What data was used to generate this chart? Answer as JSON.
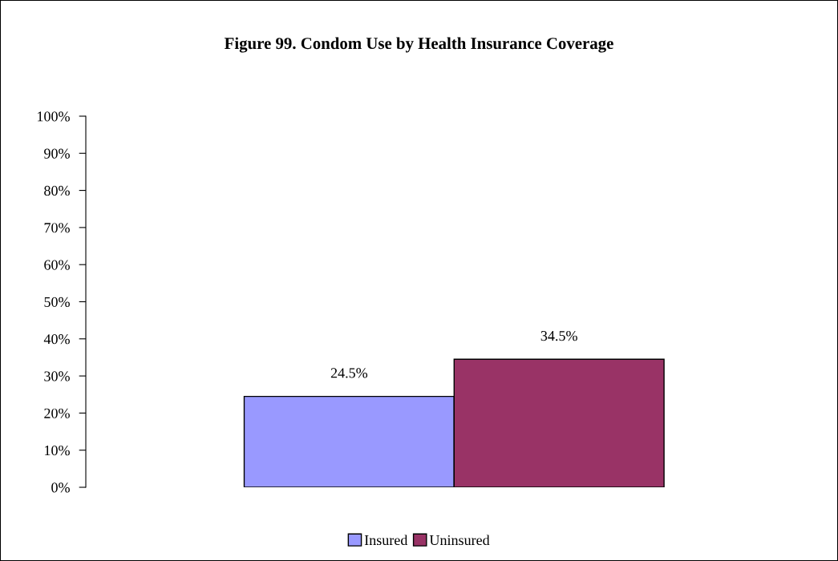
{
  "chart_data": {
    "type": "bar",
    "title": "Figure 99. Condom Use by Health Insurance Coverage",
    "categories": [
      null
    ],
    "series": [
      {
        "name": "Insured",
        "color": "#9999ff",
        "values": [
          24.5
        ],
        "value_labels": [
          "24.5%"
        ]
      },
      {
        "name": "Uninsured",
        "color": "#993366",
        "values": [
          34.5
        ],
        "value_labels": [
          "34.5%"
        ]
      }
    ],
    "ylim": [
      0,
      100
    ],
    "yticks": [
      {
        "value": 0,
        "label": "0%"
      },
      {
        "value": 10,
        "label": "10%"
      },
      {
        "value": 20,
        "label": "20%"
      },
      {
        "value": 30,
        "label": "30%"
      },
      {
        "value": 40,
        "label": "40%"
      },
      {
        "value": 50,
        "label": "50%"
      },
      {
        "value": 60,
        "label": "60%"
      },
      {
        "value": 70,
        "label": "70%"
      },
      {
        "value": 80,
        "label": "80%"
      },
      {
        "value": 90,
        "label": "90%"
      },
      {
        "value": 100,
        "label": "100%"
      }
    ],
    "grid": false,
    "legend": "bottom",
    "tick_labels": "y"
  }
}
